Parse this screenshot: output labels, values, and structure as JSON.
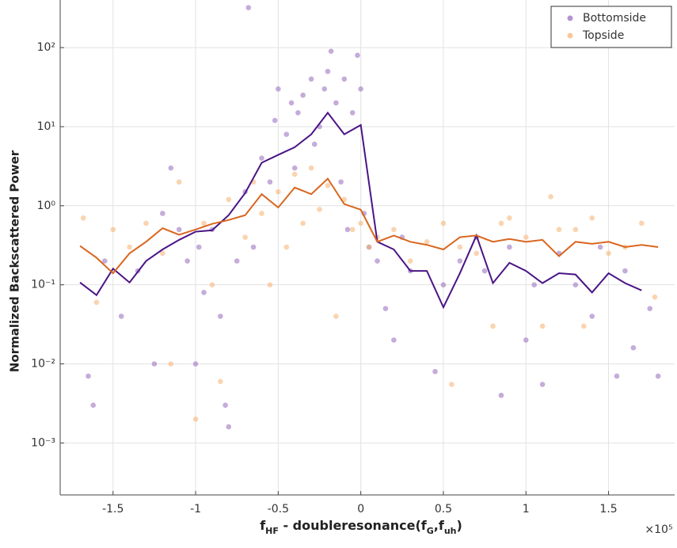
{
  "chart_data": {
    "type": "scatter",
    "ylabel": "Normalized Backscattered Power",
    "xlabel": [
      {
        "text": "f"
      },
      {
        "text": "HF",
        "sub": true
      },
      {
        "text": " - doubleresonance(f"
      },
      {
        "text": "G",
        "sub": true
      },
      {
        "text": ",f"
      },
      {
        "text": "uh",
        "sub": true
      },
      {
        "text": ")"
      }
    ],
    "x_multiplier": "×10⁵",
    "xlim": [
      -1.82,
      1.9
    ],
    "xticks": [
      -1.5,
      -1,
      -0.5,
      0,
      0.5,
      1,
      1.5
    ],
    "ylim": [
      0.00022,
      400
    ],
    "log_y": true,
    "yticks": [
      {
        "value": 0.001,
        "label": "10⁻³"
      },
      {
        "value": 0.01,
        "label": "10⁻²"
      },
      {
        "value": 0.1,
        "label": "10⁻¹"
      },
      {
        "value": 1,
        "label": "10⁰"
      },
      {
        "value": 10,
        "label": "10¹"
      },
      {
        "value": 100,
        "label": "10²"
      }
    ],
    "grid": true,
    "legend": "upper right",
    "series": [
      {
        "name": "Bottomside",
        "color": "#9467bd",
        "x": [
          -1.65,
          -1.62,
          -1.55,
          -1.45,
          -1.35,
          -1.25,
          -1.2,
          -1.15,
          -1.1,
          -1.05,
          -1.0,
          -0.98,
          -0.95,
          -0.9,
          -0.85,
          -0.82,
          -0.8,
          -0.75,
          -0.7,
          -0.68,
          -0.65,
          -0.6,
          -0.55,
          -0.52,
          -0.5,
          -0.45,
          -0.42,
          -0.4,
          -0.38,
          -0.35,
          -0.3,
          -0.28,
          -0.25,
          -0.22,
          -0.2,
          -0.18,
          -0.15,
          -0.12,
          -0.1,
          -0.08,
          -0.05,
          -0.02,
          0,
          0.02,
          0.05,
          0.1,
          0.15,
          0.2,
          0.25,
          0.3,
          0.45,
          0.5,
          0.6,
          0.7,
          0.75,
          0.85,
          0.9,
          1.0,
          1.05,
          1.1,
          1.2,
          1.3,
          1.4,
          1.45,
          1.55,
          1.6,
          1.65,
          1.75,
          1.8
        ],
        "values": [
          0.007,
          0.003,
          0.2,
          0.04,
          0.15,
          0.01,
          0.8,
          3,
          0.5,
          0.2,
          0.01,
          0.3,
          0.08,
          0.5,
          0.04,
          0.003,
          0.0016,
          0.2,
          1.5,
          320,
          0.3,
          4,
          2,
          12,
          30,
          8,
          20,
          3,
          15,
          25,
          40,
          6,
          10,
          30,
          50,
          90,
          20,
          2,
          40,
          0.5,
          15,
          80,
          30,
          0.8,
          0.3,
          0.2,
          0.05,
          0.02,
          0.4,
          0.15,
          0.008,
          0.1,
          0.2,
          0.4,
          0.15,
          0.004,
          0.3,
          0.02,
          0.1,
          0.0055,
          0.25,
          0.1,
          0.04,
          0.3,
          0.007,
          0.15,
          0.016,
          0.05,
          0.007
        ],
        "trend": {
          "color": "#4a1486",
          "x": [
            -1.7,
            -1.6,
            -1.5,
            -1.4,
            -1.3,
            -1.2,
            -1.1,
            -1.0,
            -0.9,
            -0.8,
            -0.7,
            -0.6,
            -0.5,
            -0.4,
            -0.3,
            -0.2,
            -0.1,
            0,
            0.1,
            0.2,
            0.3,
            0.4,
            0.5,
            0.6,
            0.7,
            0.8,
            0.9,
            1.0,
            1.1,
            1.2,
            1.3,
            1.4,
            1.5,
            1.6,
            1.7
          ],
          "values": [
            0.107,
            0.074,
            0.16,
            0.107,
            0.2,
            0.28,
            0.37,
            0.47,
            0.49,
            0.76,
            1.45,
            3.5,
            4.4,
            5.5,
            8,
            15,
            8,
            10.5,
            0.35,
            0.28,
            0.15,
            0.15,
            0.052,
            0.14,
            0.42,
            0.105,
            0.19,
            0.15,
            0.105,
            0.14,
            0.135,
            0.08,
            0.14,
            0.105,
            0.085
          ]
        }
      },
      {
        "name": "Topside",
        "color": "#f5b070",
        "x": [
          -1.68,
          -1.6,
          -1.5,
          -1.4,
          -1.3,
          -1.2,
          -1.15,
          -1.1,
          -1.0,
          -0.95,
          -0.9,
          -0.85,
          -0.8,
          -0.7,
          -0.65,
          -0.6,
          -0.55,
          -0.5,
          -0.45,
          -0.4,
          -0.35,
          -0.3,
          -0.25,
          -0.2,
          -0.15,
          -0.1,
          -0.05,
          0,
          0.05,
          0.1,
          0.2,
          0.3,
          0.4,
          0.5,
          0.55,
          0.6,
          0.7,
          0.8,
          0.85,
          0.9,
          1.0,
          1.1,
          1.15,
          1.2,
          1.3,
          1.35,
          1.4,
          1.5,
          1.6,
          1.7,
          1.78
        ],
        "values": [
          0.7,
          0.06,
          0.5,
          0.3,
          0.6,
          0.25,
          0.01,
          2,
          0.002,
          0.6,
          0.1,
          0.006,
          1.2,
          0.4,
          2,
          0.8,
          0.1,
          1.5,
          0.3,
          2.5,
          0.6,
          3,
          0.9,
          1.8,
          0.04,
          1.2,
          0.5,
          0.6,
          0.3,
          0.4,
          0.5,
          0.2,
          0.35,
          0.6,
          0.0055,
          0.3,
          0.25,
          0.03,
          0.6,
          0.7,
          0.4,
          0.03,
          1.3,
          0.5,
          0.5,
          0.03,
          0.7,
          0.25,
          0.3,
          0.6,
          0.07
        ],
        "trend": {
          "color": "#d9661f",
          "x": [
            -1.7,
            -1.6,
            -1.5,
            -1.4,
            -1.3,
            -1.2,
            -1.1,
            -1.0,
            -0.9,
            -0.8,
            -0.7,
            -0.6,
            -0.5,
            -0.4,
            -0.3,
            -0.2,
            -0.1,
            0,
            0.1,
            0.2,
            0.3,
            0.4,
            0.5,
            0.6,
            0.7,
            0.8,
            0.9,
            1.0,
            1.1,
            1.2,
            1.3,
            1.4,
            1.5,
            1.6,
            1.7,
            1.8
          ],
          "values": [
            0.31,
            0.22,
            0.14,
            0.25,
            0.35,
            0.52,
            0.43,
            0.5,
            0.59,
            0.66,
            0.76,
            1.4,
            0.95,
            1.7,
            1.4,
            2.2,
            1.05,
            0.89,
            0.35,
            0.42,
            0.35,
            0.32,
            0.28,
            0.4,
            0.42,
            0.35,
            0.38,
            0.35,
            0.37,
            0.23,
            0.35,
            0.33,
            0.35,
            0.3,
            0.32,
            0.3
          ]
        }
      }
    ]
  }
}
